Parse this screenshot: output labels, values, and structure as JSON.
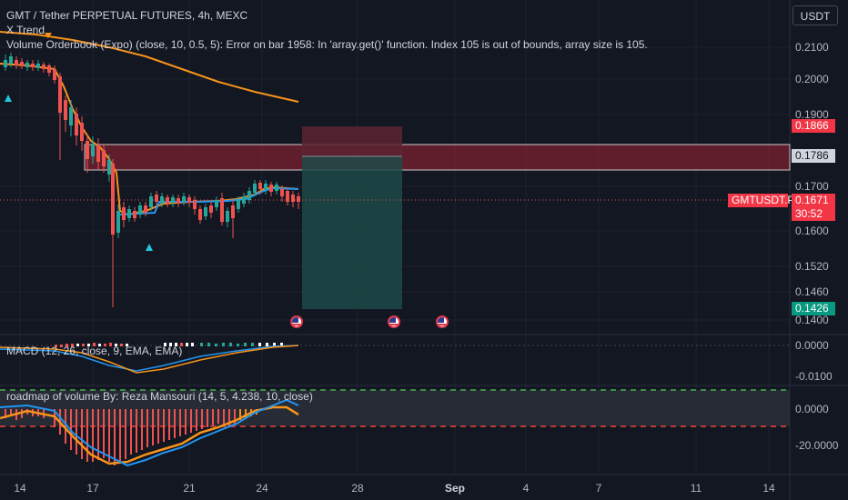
{
  "header": {
    "symbol_title": "GMT / Tether PERPETUAL FUTURES, 4h, MEXC",
    "indicator_1": "X Trend",
    "indicator_2_error": "Volume Orderbook (Expo) (close, 10, 0.5, 5): Error on bar 1958: In 'array.get()' function. Index 105 is out of bounds, array size is 105."
  },
  "currency": "USDT",
  "price_axis": [
    "0.2100",
    "0.2000",
    "0.1900",
    "0.1700",
    "0.1600",
    "0.1520",
    "0.1460",
    "0.1400"
  ],
  "price_labels": {
    "upper_zone": "0.1866",
    "zone_mid": "0.1786",
    "symbol_tag": "GMTUSDT.P",
    "last_price": "0.1671",
    "countdown": "30:52",
    "target": "0.1426"
  },
  "macd": {
    "label": "MACD (12, 26, close, 9, EMA, EMA)",
    "axis": [
      "0.0000",
      "-0.0100"
    ]
  },
  "roadmap": {
    "label": "roadmap of volume By: Reza Mansouri (14, 5, 4.238, 10, close)",
    "axis": [
      "0.0000",
      "-20.0000"
    ]
  },
  "dates": [
    "14",
    "17",
    "21",
    "24",
    "28",
    "Sep",
    "4",
    "7",
    "11",
    "14"
  ],
  "colors": {
    "background": "#131722",
    "up": "#26a69a",
    "down": "#ef5350",
    "trend": "#f7931a",
    "zone": "#7b2230",
    "long_box": "#1d4a48",
    "short_box": "#5a2430",
    "macd_line": "#2196f3"
  }
}
